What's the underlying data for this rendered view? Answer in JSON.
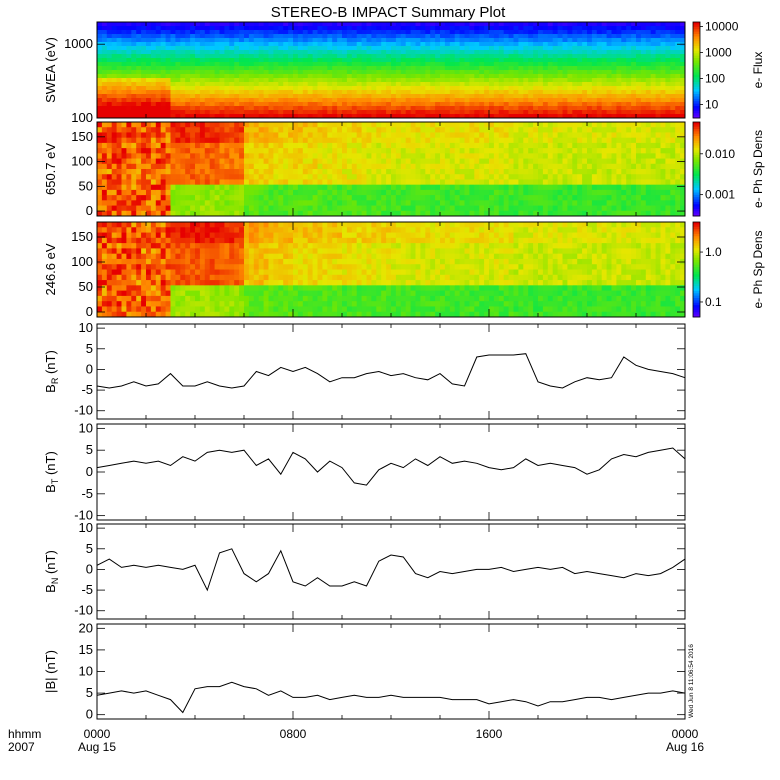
{
  "title": "STEREO-B IMPACT Summary Plot",
  "stamp": "Wed Jun  8 11:06:54 2016",
  "time_axis": {
    "label_top": "hhmm",
    "label_bottom": "2007",
    "ticks": [
      {
        "hour": 0,
        "label": "0000",
        "date": "Aug 15"
      },
      {
        "hour": 8,
        "label": "0800",
        "date": ""
      },
      {
        "hour": 16,
        "label": "1600",
        "date": ""
      },
      {
        "hour": 24,
        "label": "0000",
        "date": "Aug 16"
      }
    ]
  },
  "chart_data": [
    {
      "type": "heatmap",
      "ylabel": "SWEA (eV)",
      "yscale": "log",
      "ylim": [
        100,
        2000
      ],
      "yticks": [
        {
          "v": 100,
          "label": "100"
        },
        {
          "v": 1000,
          "label": "1000"
        }
      ],
      "colorbar": {
        "label": "e- Flux",
        "scale": "log",
        "range": [
          3,
          15000
        ],
        "ticks": [
          {
            "v": 10,
            "label": "10"
          },
          {
            "v": 100,
            "label": "100"
          },
          {
            "v": 1000,
            "label": "1000"
          },
          {
            "v": 10000,
            "label": "10000"
          }
        ]
      },
      "description_rows": "energy bands from low (red) to high (blue)"
    },
    {
      "type": "heatmap",
      "ylabel": "650.7 eV",
      "ylim": [
        -10,
        180
      ],
      "yticks": [
        {
          "v": 0,
          "label": "0"
        },
        {
          "v": 50,
          "label": "50"
        },
        {
          "v": 100,
          "label": "100"
        },
        {
          "v": 150,
          "label": "150"
        }
      ],
      "colorbar": {
        "label": "e- Ph Sp Dens",
        "scale": "log",
        "range": [
          0.0003,
          0.06
        ],
        "ticks": [
          {
            "v": 0.001,
            "label": "0.001"
          },
          {
            "v": 0.01,
            "label": "0.010"
          }
        ]
      },
      "anisotropy": [
        0.95,
        0.95,
        0.95,
        0.9,
        0.9,
        0.85,
        0.55,
        0.5,
        0.5,
        0.45,
        0.45,
        0.4,
        0.4,
        0.4,
        0.4,
        0.4,
        0.4,
        0.35,
        0.35,
        0.35,
        0.35,
        0.35,
        0.35,
        0.35
      ]
    },
    {
      "type": "heatmap",
      "ylabel": "246.6 eV",
      "ylim": [
        -10,
        180
      ],
      "yticks": [
        {
          "v": 0,
          "label": "0"
        },
        {
          "v": 50,
          "label": "50"
        },
        {
          "v": 100,
          "label": "100"
        },
        {
          "v": 150,
          "label": "150"
        }
      ],
      "colorbar": {
        "label": "e- Ph Sp Dens",
        "scale": "log",
        "range": [
          0.05,
          4
        ],
        "ticks": [
          {
            "v": 0.1,
            "label": "0.1"
          },
          {
            "v": 1,
            "label": "1.0"
          }
        ]
      },
      "anisotropy": [
        1,
        1,
        1,
        0.95,
        0.95,
        0.9,
        0.6,
        0.55,
        0.5,
        0.5,
        0.45,
        0.45,
        0.4,
        0.4,
        0.4,
        0.4,
        0.4,
        0.35,
        0.35,
        0.35,
        0.35,
        0.35,
        0.35,
        0.35
      ]
    },
    {
      "type": "line",
      "ylabel": "B",
      "ylabel_sub": "R",
      "ylabel_unit": " (nT)",
      "ylim": [
        -12,
        11
      ],
      "yticks": [
        {
          "v": -10,
          "label": "-10"
        },
        {
          "v": -5,
          "label": "-5"
        },
        {
          "v": 0,
          "label": "0"
        },
        {
          "v": 5,
          "label": "5"
        },
        {
          "v": 10,
          "label": "10"
        }
      ],
      "x": [
        0,
        0.5,
        1,
        1.5,
        2,
        2.5,
        3,
        3.5,
        4,
        4.5,
        5,
        5.5,
        6,
        6.5,
        7,
        7.5,
        8,
        8.5,
        9,
        9.5,
        10,
        10.5,
        11,
        11.5,
        12,
        12.5,
        13,
        13.5,
        14,
        14.5,
        15,
        15.5,
        16,
        16.5,
        17,
        17.5,
        18,
        18.5,
        19,
        19.5,
        20,
        20.5,
        21,
        21.5,
        22,
        22.5,
        23,
        23.5,
        24
      ],
      "y": [
        -4,
        -4.5,
        -4,
        -3,
        -4,
        -3.5,
        -1,
        -4,
        -4,
        -3,
        -4,
        -4.5,
        -4,
        -0.5,
        -1.5,
        0.5,
        -0.5,
        0.5,
        -1,
        -3,
        -2,
        -2,
        -1,
        -0.5,
        -1.5,
        -1,
        -2,
        -2.5,
        -1,
        -3.5,
        -4,
        3,
        3.5,
        3.5,
        3.5,
        3.8,
        -3,
        -4,
        -4.5,
        -3,
        -2,
        -2.5,
        -2,
        3,
        1,
        0,
        -0.5,
        -1,
        -2
      ]
    },
    {
      "type": "line",
      "ylabel": "B",
      "ylabel_sub": "T",
      "ylabel_unit": " (nT)",
      "ylim": [
        -11,
        11
      ],
      "yticks": [
        {
          "v": -10,
          "label": "-10"
        },
        {
          "v": -5,
          "label": "-5"
        },
        {
          "v": 0,
          "label": "0"
        },
        {
          "v": 5,
          "label": "5"
        },
        {
          "v": 10,
          "label": "10"
        }
      ],
      "x": [
        0,
        0.5,
        1,
        1.5,
        2,
        2.5,
        3,
        3.5,
        4,
        4.5,
        5,
        5.5,
        6,
        6.5,
        7,
        7.5,
        8,
        8.5,
        9,
        9.5,
        10,
        10.5,
        11,
        11.5,
        12,
        12.5,
        13,
        13.5,
        14,
        14.5,
        15,
        15.5,
        16,
        16.5,
        17,
        17.5,
        18,
        18.5,
        19,
        19.5,
        20,
        20.5,
        21,
        21.5,
        22,
        22.5,
        23,
        23.5,
        24
      ],
      "y": [
        1,
        1.5,
        2,
        2.5,
        2,
        2.5,
        1.5,
        3.5,
        2.5,
        4.5,
        5,
        4.5,
        5,
        1.5,
        3,
        -0.5,
        4.5,
        3,
        0,
        2.5,
        1,
        -2.5,
        -3,
        0.5,
        2,
        1,
        3,
        1.5,
        3.5,
        2,
        2.5,
        2,
        1,
        0.5,
        1,
        3,
        1.5,
        2,
        1.5,
        1,
        -0.5,
        0.5,
        3,
        4,
        3.5,
        4.5,
        5,
        5.5,
        3
      ]
    },
    {
      "type": "line",
      "ylabel": "B",
      "ylabel_sub": "N",
      "ylabel_unit": " (nT)",
      "ylim": [
        -12,
        11
      ],
      "yticks": [
        {
          "v": -10,
          "label": "-10"
        },
        {
          "v": -5,
          "label": "-5"
        },
        {
          "v": 0,
          "label": "0"
        },
        {
          "v": 5,
          "label": "5"
        },
        {
          "v": 10,
          "label": "10"
        }
      ],
      "x": [
        0,
        0.5,
        1,
        1.5,
        2,
        2.5,
        3,
        3.5,
        4,
        4.5,
        5,
        5.5,
        6,
        6.5,
        7,
        7.5,
        8,
        8.5,
        9,
        9.5,
        10,
        10.5,
        11,
        11.5,
        12,
        12.5,
        13,
        13.5,
        14,
        14.5,
        15,
        15.5,
        16,
        16.5,
        17,
        17.5,
        18,
        18.5,
        19,
        19.5,
        20,
        20.5,
        21,
        21.5,
        22,
        22.5,
        23,
        23.5,
        24
      ],
      "y": [
        1,
        2.5,
        0.5,
        1,
        0.5,
        1,
        0.5,
        0,
        1,
        -5,
        4,
        5,
        -1,
        -3,
        -1,
        4.5,
        -3,
        -4,
        -2,
        -4,
        -4,
        -3,
        -4,
        2,
        3.5,
        3,
        -1,
        -2,
        -0.5,
        -1,
        -0.5,
        0,
        0,
        0.5,
        -0.5,
        0,
        0.5,
        0,
        0.5,
        -1,
        -0.5,
        -1,
        -1.5,
        -2,
        -1,
        -1.5,
        -1,
        0.5,
        2.5
      ]
    },
    {
      "type": "line",
      "ylabel": "|B|",
      "ylabel_sub": "",
      "ylabel_unit": " (nT)",
      "ylim": [
        -1,
        21
      ],
      "yticks": [
        {
          "v": 0,
          "label": "0"
        },
        {
          "v": 5,
          "label": "5"
        },
        {
          "v": 10,
          "label": "10"
        },
        {
          "v": 15,
          "label": "15"
        },
        {
          "v": 20,
          "label": "20"
        }
      ],
      "x": [
        0,
        0.5,
        1,
        1.5,
        2,
        2.5,
        3,
        3.5,
        4,
        4.5,
        5,
        5.5,
        6,
        6.5,
        7,
        7.5,
        8,
        8.5,
        9,
        9.5,
        10,
        10.5,
        11,
        11.5,
        12,
        12.5,
        13,
        13.5,
        14,
        14.5,
        15,
        15.5,
        16,
        16.5,
        17,
        17.5,
        18,
        18.5,
        19,
        19.5,
        20,
        20.5,
        21,
        21.5,
        22,
        22.5,
        23,
        23.5,
        24
      ],
      "y": [
        4.5,
        5,
        5.5,
        5,
        5.5,
        4.5,
        3.5,
        0.5,
        6,
        6.5,
        6.5,
        7.5,
        6.5,
        6,
        4.5,
        5.5,
        4,
        4,
        4.5,
        3.5,
        4,
        4.5,
        4,
        4,
        4.5,
        4,
        4,
        4,
        4,
        3.5,
        3.5,
        3.5,
        2.5,
        3,
        3.5,
        3,
        2,
        3,
        3,
        3.5,
        4,
        4,
        3.5,
        4,
        4.5,
        5,
        5,
        5.5,
        5
      ]
    }
  ]
}
